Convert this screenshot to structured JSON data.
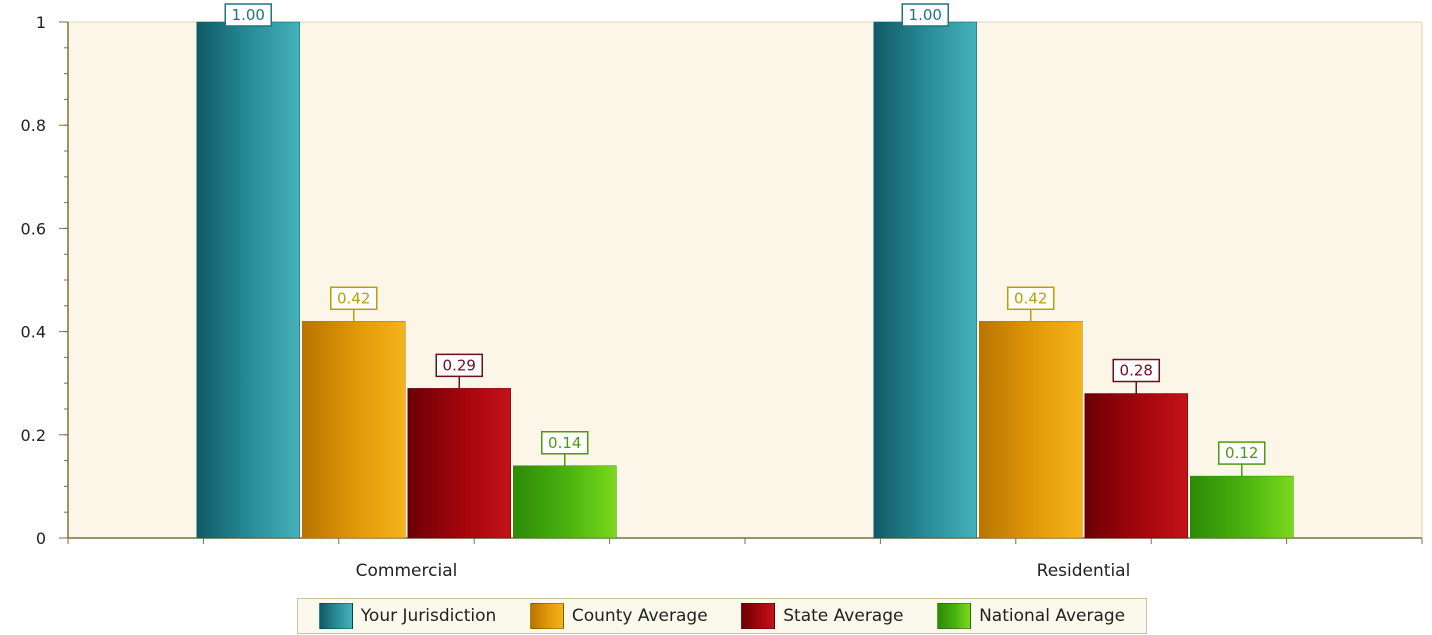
{
  "chart_data": {
    "type": "bar",
    "title": "",
    "xlabel": "",
    "ylabel": "",
    "categories": [
      "Commercial",
      "Residential"
    ],
    "ylim": [
      0,
      1
    ],
    "yticks": [
      0,
      0.2,
      0.4,
      0.6,
      0.8,
      1
    ],
    "ytick_labels": [
      "0",
      "0.2",
      "0.4",
      "0.6",
      "0.8",
      "1"
    ],
    "grid": false,
    "legend_position": "bottom",
    "series": [
      {
        "name": "Your Jurisdiction",
        "values": [
          1.0,
          1.0
        ],
        "labels": [
          "1.00",
          "1.00"
        ],
        "color": "#2a8f9a",
        "dark": "#0f5a66",
        "light": "#45b1b8",
        "label_color": "#1e7480"
      },
      {
        "name": "County Average",
        "values": [
          0.42,
          0.42
        ],
        "labels": [
          "0.42",
          "0.42"
        ],
        "color": "#e39a0a",
        "dark": "#b87400",
        "light": "#f4b31a",
        "label_color": "#b8a000"
      },
      {
        "name": "State Average",
        "values": [
          0.29,
          0.28
        ],
        "labels": [
          "0.29",
          "0.28"
        ],
        "color": "#a5050c",
        "dark": "#6a0005",
        "light": "#c4121a",
        "label_color": "#6b0f1e"
      },
      {
        "name": "National Average",
        "values": [
          0.14,
          0.12
        ],
        "labels": [
          "0.14",
          "0.12"
        ],
        "color": "#4ab510",
        "dark": "#2e8a06",
        "light": "#7cd81d",
        "label_color": "#4d9a12"
      }
    ]
  }
}
